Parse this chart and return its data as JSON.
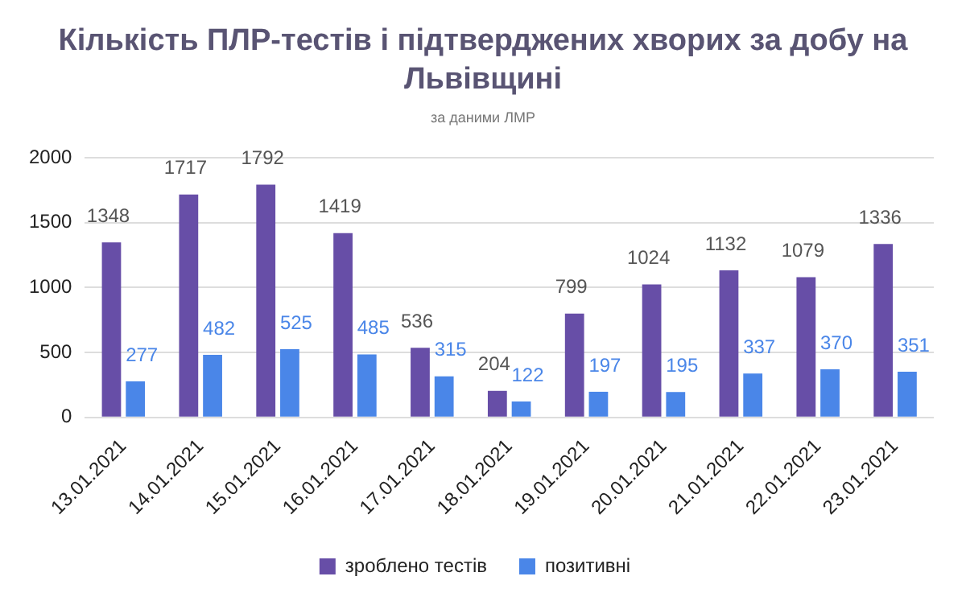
{
  "chart_data": {
    "type": "bar",
    "title": "Кількість ПЛР-тестів і підтверджених хворих за добу на Львівщині",
    "subtitle": "за даними ЛМР",
    "categories": [
      "13.01.2021",
      "14.01.2021",
      "15.01.2021",
      "16.01.2021",
      "17.01.2021",
      "18.01.2021",
      "19.01.2021",
      "20.01.2021",
      "21.01.2021",
      "22.01.2021",
      "23.01.2021"
    ],
    "series": [
      {
        "name": "зроблено тестів",
        "color": "#674ea7",
        "values": [
          1348,
          1717,
          1792,
          1419,
          536,
          204,
          799,
          1024,
          1132,
          1079,
          1336
        ]
      },
      {
        "name": "позитивні",
        "color": "#4a86e8",
        "values": [
          277,
          482,
          525,
          485,
          315,
          122,
          197,
          195,
          337,
          370,
          351
        ]
      }
    ],
    "ylim": [
      0,
      2000
    ],
    "yticks": [
      0,
      500,
      1000,
      1500,
      2000
    ],
    "grid": "y",
    "legend": "bottom",
    "data_labels": true
  }
}
